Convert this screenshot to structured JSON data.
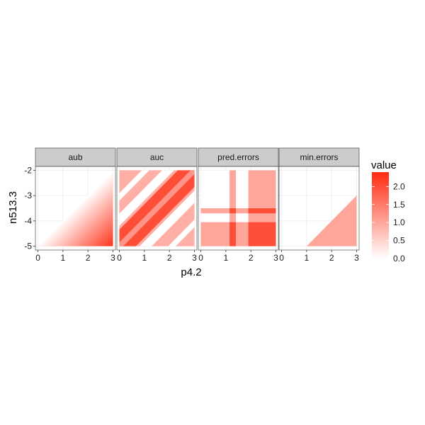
{
  "chart_data": {
    "type": "heatmap",
    "xlabel": "p4.2",
    "ylabel": "n513.3",
    "xlim": [
      -0.1,
      3.1
    ],
    "ylim": [
      -5.15,
      -1.85
    ],
    "x_ticks": [
      0,
      1,
      2,
      3
    ],
    "x_tick_labels": [
      "0",
      "1",
      "2",
      "3"
    ],
    "y_ticks": [
      -5,
      -4,
      -3,
      -2
    ],
    "y_tick_labels": [
      "-5",
      "-4",
      "-3",
      "-2"
    ],
    "grid": true,
    "legend": {
      "title": "value",
      "position": "right",
      "range": [
        0,
        2.4
      ],
      "ticks": [
        0,
        0.5,
        1,
        1.5,
        2
      ],
      "tick_labels": [
        "0.0",
        "0.5",
        "1.0",
        "1.5",
        "2.0"
      ],
      "low_color": "#ffffff",
      "high_color": "#ff2a10"
    },
    "panels": [
      {
        "title": "aub",
        "description_key": "gradient",
        "regions": [
          {
            "kind": "lower-triangle-gradient",
            "x": [
              0,
              3
            ],
            "y": [
              -5,
              -2
            ],
            "value_max": 2.3
          }
        ]
      },
      {
        "title": "auc",
        "description_key": "bands",
        "regions": [
          {
            "kind": "rect",
            "x": [
              0,
              3
            ],
            "y": [
              -5,
              -2
            ],
            "value": 0.9
          },
          {
            "kind": "diagonal-band",
            "offset": 0.0,
            "half_width": 0.22,
            "value": 2.0
          },
          {
            "kind": "diagonal-band",
            "offset": 0.0,
            "half_width": 0.05,
            "value": 1.2
          },
          {
            "kind": "diagonal-gap",
            "offset": 0.35,
            "half_width": 0.08,
            "value": 0.0
          },
          {
            "kind": "diagonal-gap",
            "offset": -0.35,
            "half_width": 0.08,
            "value": 0.0
          },
          {
            "kind": "diagonal-gap",
            "offset": 0.65,
            "half_width": 0.05,
            "value": 0.0
          },
          {
            "kind": "diagonal-gap",
            "offset": -0.7,
            "half_width": 0.05,
            "value": 0.0
          }
        ]
      },
      {
        "title": "pred.errors",
        "description_key": "cross",
        "regions": [
          {
            "kind": "rect",
            "x": [
              0,
              3
            ],
            "y": [
              -5,
              -2
            ],
            "value": 0.0
          },
          {
            "kind": "rect",
            "x": [
              1.15,
              1.4
            ],
            "y": [
              -5,
              -2
            ],
            "value": 1.0
          },
          {
            "kind": "rect",
            "x": [
              1.9,
              3
            ],
            "y": [
              -5,
              -2
            ],
            "value": 1.0
          },
          {
            "kind": "rect",
            "x": [
              0,
              3
            ],
            "y": [
              -3.7,
              -3.5
            ],
            "value": 1.0
          },
          {
            "kind": "rect",
            "x": [
              0,
              3
            ],
            "y": [
              -5,
              -4.05
            ],
            "value": 1.0
          },
          {
            "kind": "overlap-boost",
            "value": 2.0
          }
        ]
      },
      {
        "title": "min.errors",
        "description_key": "triangle",
        "regions": [
          {
            "kind": "triangle",
            "points": [
              [
                1,
                -5
              ],
              [
                3,
                -5
              ],
              [
                3,
                -3
              ]
            ],
            "value": 1.0
          }
        ]
      }
    ]
  }
}
